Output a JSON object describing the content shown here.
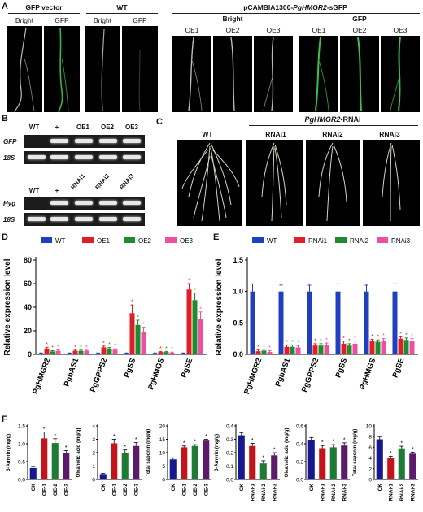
{
  "panelA": {
    "label": "A",
    "gfp_vector": "GFP vector",
    "wt": "WT",
    "construct_prefix": "pCAMBIA1300-",
    "construct_gene": "PgHMGR2",
    "construct_suffix": "-sGFP",
    "bright": "Bright",
    "gfp": "GFP",
    "oe_labels": [
      "OE1",
      "OE2",
      "OE3"
    ]
  },
  "panelB": {
    "label": "B",
    "top_lanes": [
      "WT",
      "+",
      "OE1",
      "OE2",
      "OE3"
    ],
    "top_rows": [
      "GFP",
      "18S"
    ],
    "bottom_lanes": [
      "WT",
      "+",
      "RNAi1",
      "RNAi2",
      "RNAi3"
    ],
    "bottom_rows": [
      "Hyg",
      "18S"
    ]
  },
  "panelC": {
    "label": "C",
    "wt": "WT",
    "group_gene": "PgHMGR2",
    "group_suffix": "-RNAi",
    "lines": [
      "RNAi1",
      "RNAi2",
      "RNAi3"
    ]
  },
  "chart_data": [
    {
      "id": "D",
      "type": "bar",
      "label": "D",
      "ylabel": "Relative expression level",
      "ylim": [
        0,
        80
      ],
      "yticks": [
        0,
        20,
        40,
        60,
        80
      ],
      "categories": [
        "PgHMGR2",
        "PgbAS1",
        "PgGPPS2",
        "PgSS",
        "PgHMGS",
        "PgSE"
      ],
      "legend_position": "top",
      "series": [
        {
          "name": "WT",
          "color": "#1f3fbf",
          "values": [
            1,
            1,
            1,
            1,
            1,
            1
          ],
          "errors": [
            0.2,
            0.2,
            0.2,
            0.2,
            0.2,
            0.2
          ]
        },
        {
          "name": "OE1",
          "color": "#e01e25",
          "values": [
            5,
            3,
            6,
            35,
            2,
            55
          ],
          "errors": [
            1.0,
            0.6,
            1.0,
            7,
            0.5,
            5
          ]
        },
        {
          "name": "OE2",
          "color": "#1e8c2e",
          "values": [
            2.5,
            3,
            5,
            25,
            2,
            46
          ],
          "errors": [
            0.6,
            0.6,
            0.8,
            4,
            0.5,
            6
          ]
        },
        {
          "name": "OE3",
          "color": "#ee4fa0",
          "values": [
            3,
            3,
            4,
            19,
            1.5,
            30
          ],
          "errors": [
            0.7,
            0.5,
            0.7,
            4,
            0.4,
            6
          ]
        }
      ]
    },
    {
      "id": "E",
      "type": "bar",
      "label": "E",
      "ylabel": "Relative expression level",
      "ylim": [
        0,
        1.5
      ],
      "yticks": [
        0.0,
        0.5,
        1.0,
        1.5
      ],
      "categories": [
        "PgHMGR2",
        "PgbAS1",
        "PgGPPS2",
        "PgSS",
        "PgHMGS",
        "PgSE"
      ],
      "legend_position": "top",
      "series": [
        {
          "name": "WT",
          "color": "#1f3fbf",
          "values": [
            1,
            1,
            1,
            1,
            1,
            1
          ],
          "errors": [
            0.12,
            0.1,
            0.1,
            0.12,
            0.1,
            0.12
          ]
        },
        {
          "name": "RNAi1",
          "color": "#e01e25",
          "values": [
            0.05,
            0.12,
            0.14,
            0.17,
            0.21,
            0.25
          ],
          "errors": [
            0.02,
            0.03,
            0.03,
            0.04,
            0.03,
            0.03
          ]
        },
        {
          "name": "RNAi2",
          "color": "#1e8c2e",
          "values": [
            0.06,
            0.12,
            0.14,
            0.14,
            0.2,
            0.23
          ],
          "errors": [
            0.02,
            0.03,
            0.03,
            0.03,
            0.03,
            0.03
          ]
        },
        {
          "name": "RNAi3",
          "color": "#ee4fa0",
          "values": [
            0.04,
            0.11,
            0.15,
            0.17,
            0.22,
            0.22
          ],
          "errors": [
            0.02,
            0.03,
            0.03,
            0.04,
            0.03,
            0.03
          ]
        }
      ]
    },
    {
      "id": "F1",
      "type": "bar",
      "label": "F",
      "ylabel": "β-Amyrin (mg/g)",
      "ylim": [
        0,
        1.5
      ],
      "yticks": [
        0.0,
        0.5,
        1.0,
        1.5
      ],
      "categories": [
        "CK",
        "OE-1",
        "OE-2",
        "OE-3"
      ],
      "values": [
        0.32,
        1.15,
        1.02,
        0.75
      ],
      "errors": [
        0.04,
        0.18,
        0.12,
        0.06
      ],
      "colors": [
        "#16188f",
        "#c4141b",
        "#1e7a35",
        "#5c1a6b"
      ]
    },
    {
      "id": "F2",
      "type": "bar",
      "ylabel": "Oleanolic acid (mg/g)",
      "ylim": [
        0,
        4
      ],
      "yticks": [
        0,
        1,
        2,
        3,
        4
      ],
      "categories": [
        "CK",
        "OE-1",
        "OE-2",
        "OE-3"
      ],
      "values": [
        0.4,
        2.7,
        2.0,
        2.5
      ],
      "errors": [
        0.05,
        0.3,
        0.2,
        0.25
      ],
      "colors": [
        "#16188f",
        "#c4141b",
        "#1e7a35",
        "#5c1a6b"
      ]
    },
    {
      "id": "F3",
      "type": "bar",
      "ylabel": "Total saponin (mg/g)",
      "ylim": [
        0,
        20
      ],
      "yticks": [
        0,
        5,
        10,
        15,
        20
      ],
      "categories": [
        "CK",
        "OE-1",
        "OE-2",
        "OE-3"
      ],
      "values": [
        7.5,
        12,
        12.5,
        14.5
      ],
      "errors": [
        0.6,
        0.5,
        0.5,
        0.5
      ],
      "colors": [
        "#16188f",
        "#c4141b",
        "#1e7a35",
        "#5c1a6b"
      ]
    },
    {
      "id": "F4",
      "type": "bar",
      "ylabel": "β-Amyrin (mg/g)",
      "ylim": [
        0,
        0.4
      ],
      "yticks": [
        0.0,
        0.1,
        0.2,
        0.3,
        0.4
      ],
      "categories": [
        "CK",
        "RNAi-1",
        "RNAi-2",
        "RNAi-3"
      ],
      "values": [
        0.33,
        0.25,
        0.12,
        0.18
      ],
      "errors": [
        0.02,
        0.02,
        0.02,
        0.02
      ],
      "colors": [
        "#16188f",
        "#c4141b",
        "#1e7a35",
        "#5c1a6b"
      ]
    },
    {
      "id": "F5",
      "type": "bar",
      "ylabel": "Oleanolic acid (mg/g)",
      "ylim": [
        0,
        0.6
      ],
      "yticks": [
        0.0,
        0.2,
        0.4,
        0.6
      ],
      "categories": [
        "CK",
        "RNAi-1",
        "RNAi-2",
        "RNAi-3"
      ],
      "values": [
        0.44,
        0.35,
        0.36,
        0.38
      ],
      "errors": [
        0.03,
        0.03,
        0.03,
        0.03
      ],
      "colors": [
        "#16188f",
        "#c4141b",
        "#1e7a35",
        "#5c1a6b"
      ]
    },
    {
      "id": "F6",
      "type": "bar",
      "ylabel": "Total saponin (mg/g)",
      "ylim": [
        0,
        10
      ],
      "yticks": [
        0,
        2,
        4,
        6,
        8,
        10
      ],
      "categories": [
        "CK",
        "RNAi-1",
        "RNAi-2",
        "RNAi-3"
      ],
      "values": [
        7.5,
        4.0,
        5.8,
        4.8
      ],
      "errors": [
        0.5,
        0.3,
        0.4,
        0.3
      ],
      "colors": [
        "#16188f",
        "#c4141b",
        "#1e7a35",
        "#5c1a6b"
      ]
    }
  ]
}
